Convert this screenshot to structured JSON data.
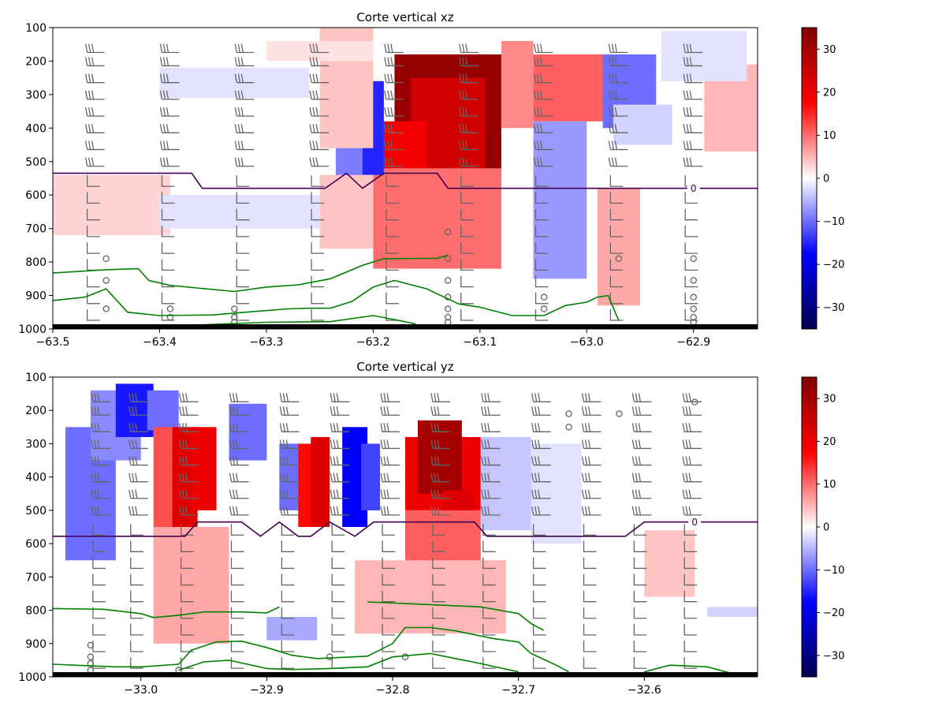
{
  "chart_data": [
    {
      "type": "heatmap",
      "title": "Corte vertical xz",
      "xlabel": "",
      "ylabel": "",
      "xlim": [
        -63.5,
        -62.84
      ],
      "ylim": [
        1000,
        100
      ],
      "y_inverted": true,
      "xticks": [
        -63.5,
        -63.4,
        -63.3,
        -63.2,
        -63.1,
        -63.0,
        -62.9
      ],
      "xtick_labels": [
        "−63.5",
        "−63.4",
        "−63.3",
        "−63.2",
        "−63.1",
        "−63.0",
        "−62.9"
      ],
      "yticks": [
        100,
        200,
        300,
        400,
        500,
        600,
        700,
        800,
        900,
        1000
      ],
      "ytick_labels": [
        "100",
        "200",
        "300",
        "400",
        "500",
        "600",
        "700",
        "800",
        "900",
        "1000"
      ],
      "colormap": "seismic",
      "clim": [
        -35,
        35
      ],
      "colorbar_ticks": [
        30,
        20,
        10,
        0,
        -10,
        -20,
        -30
      ],
      "colorbar_tick_labels": [
        "30",
        "20",
        "10",
        "0",
        "−10",
        "−20",
        "−30"
      ],
      "cells": [
        {
          "x": [
            -63.18,
            -63.08
          ],
          "y": [
            180,
            560
          ],
          "value": 32
        },
        {
          "x": [
            -63.165,
            -63.095
          ],
          "y": [
            250,
            520
          ],
          "value": 24
        },
        {
          "x": [
            -63.19,
            -63.15
          ],
          "y": [
            380,
            640
          ],
          "value": 19
        },
        {
          "x": [
            -63.2,
            -63.08
          ],
          "y": [
            520,
            820
          ],
          "value": 10
        },
        {
          "x": [
            -63.08,
            -63.05
          ],
          "y": [
            140,
            400
          ],
          "value": 8
        },
        {
          "x": [
            -63.03,
            -63.0
          ],
          "y": [
            190,
            320
          ],
          "value": 24
        },
        {
          "x": [
            -63.05,
            -62.98
          ],
          "y": [
            180,
            380
          ],
          "value": 11
        },
        {
          "x": [
            -63.22,
            -63.19
          ],
          "y": [
            260,
            540
          ],
          "value": -15
        },
        {
          "x": [
            -63.235,
            -63.21
          ],
          "y": [
            420,
            550
          ],
          "value": -9
        },
        {
          "x": [
            -63.05,
            -63.0
          ],
          "y": [
            380,
            850
          ],
          "value": -7
        },
        {
          "x": [
            -62.985,
            -62.935
          ],
          "y": [
            180,
            400
          ],
          "value": -10
        },
        {
          "x": [
            -62.975,
            -62.92
          ],
          "y": [
            330,
            450
          ],
          "value": -3
        },
        {
          "x": [
            -62.89,
            -62.84
          ],
          "y": [
            210,
            470
          ],
          "value": 5
        },
        {
          "x": [
            -63.25,
            -63.2
          ],
          "y": [
            100,
            460
          ],
          "value": 4
        },
        {
          "x": [
            -63.25,
            -63.2
          ],
          "y": [
            540,
            760
          ],
          "value": 4
        },
        {
          "x": [
            -62.99,
            -62.95
          ],
          "y": [
            580,
            930
          ],
          "value": 6
        },
        {
          "x": [
            -63.5,
            -63.39
          ],
          "y": [
            540,
            720
          ],
          "value": 3
        },
        {
          "x": [
            -63.3,
            -63.2
          ],
          "y": [
            140,
            200
          ],
          "value": 2
        },
        {
          "x": [
            -63.4,
            -63.26
          ],
          "y": [
            220,
            310
          ],
          "value": -2
        },
        {
          "x": [
            -63.4,
            -63.25
          ],
          "y": [
            600,
            700
          ],
          "value": -2
        },
        {
          "x": [
            -62.93,
            -62.85
          ],
          "y": [
            110,
            260
          ],
          "value": -2
        }
      ],
      "contours": [
        {
          "name": "0",
          "color": "#440154",
          "label_x": -62.9,
          "x": [
            -63.5,
            -63.37,
            -63.36,
            -63.245,
            -63.225,
            -63.21,
            -63.19,
            -63.14,
            -63.13,
            -62.84
          ],
          "y": [
            535,
            535,
            580,
            580,
            535,
            580,
            535,
            535,
            580,
            580
          ]
        },
        {
          "name": "green-1",
          "color": "#008000",
          "x": [
            -63.5,
            -63.45,
            -63.42,
            -63.41,
            -63.39,
            -63.33,
            -63.3,
            -63.27,
            -63.24,
            -63.21,
            -63.19,
            -63.14,
            -63.13
          ],
          "y": [
            833,
            823,
            820,
            855,
            870,
            888,
            875,
            868,
            850,
            810,
            790,
            789,
            780
          ]
        },
        {
          "name": "green-2",
          "color": "#008000",
          "x": [
            -63.5,
            -63.47,
            -63.45,
            -63.43,
            -63.4,
            -63.35,
            -63.32,
            -63.28,
            -63.26,
            -63.24,
            -63.22,
            -63.2,
            -63.18,
            -63.15,
            -63.12,
            -63.1,
            -63.07,
            -63.04,
            -63.02,
            -63.0,
            -62.99,
            -62.98,
            -62.97
          ],
          "y": [
            915,
            905,
            880,
            950,
            960,
            958,
            950,
            940,
            938,
            938,
            918,
            875,
            855,
            880,
            925,
            935,
            960,
            960,
            930,
            920,
            905,
            900,
            975
          ]
        },
        {
          "name": "green-3",
          "color": "#008000",
          "x": [
            -63.38,
            -63.3,
            -63.24,
            -63.2,
            -63.18,
            -63.16
          ],
          "y": [
            990,
            980,
            978,
            960,
            972,
            985
          ]
        }
      ],
      "open_circles": [
        {
          "x": -63.45,
          "y": [
            790,
            855,
            940
          ]
        },
        {
          "x": -63.39,
          "y": [
            940,
            965
          ]
        },
        {
          "x": -63.33,
          "y": [
            940,
            965,
            980
          ]
        },
        {
          "x": -63.13,
          "y": [
            710,
            790,
            855,
            905,
            940,
            965,
            980
          ]
        },
        {
          "x": -63.04,
          "y": [
            905,
            940
          ]
        },
        {
          "x": -62.97,
          "y": [
            790
          ]
        },
        {
          "x": -62.9,
          "y": [
            790,
            855,
            905,
            940,
            965,
            980
          ]
        }
      ],
      "barb_columns": [
        -63.47,
        -63.4,
        -63.33,
        -63.26,
        -63.19,
        -63.12,
        -63.05,
        -62.98,
        -62.91
      ],
      "barb_levels": [
        160,
        200,
        250,
        300,
        350,
        400,
        450,
        500,
        560,
        610,
        660,
        710,
        760,
        810,
        860,
        910,
        960
      ]
    },
    {
      "type": "heatmap",
      "title": "Corte vertical yz",
      "xlabel": "",
      "ylabel": "",
      "xlim": [
        -33.07,
        -32.51
      ],
      "ylim": [
        1000,
        100
      ],
      "y_inverted": true,
      "xticks": [
        -33.0,
        -32.9,
        -32.8,
        -32.7,
        -32.6
      ],
      "xtick_labels": [
        "−33.0",
        "−32.9",
        "−32.8",
        "−32.7",
        "−32.6"
      ],
      "yticks": [
        100,
        200,
        300,
        400,
        500,
        600,
        700,
        800,
        900,
        1000
      ],
      "ytick_labels": [
        "100",
        "200",
        "300",
        "400",
        "500",
        "600",
        "700",
        "800",
        "900",
        "1000"
      ],
      "colormap": "seismic",
      "clim": [
        -35,
        35
      ],
      "colorbar_ticks": [
        30,
        20,
        10,
        0,
        -10,
        -20,
        -30
      ],
      "colorbar_tick_labels": [
        "30",
        "20",
        "10",
        "0",
        "−10",
        "−20",
        "−30"
      ],
      "cells": [
        {
          "x": [
            -33.06,
            -33.02
          ],
          "y": [
            250,
            650
          ],
          "value": -10
        },
        {
          "x": [
            -33.04,
            -33.0
          ],
          "y": [
            140,
            350
          ],
          "value": -8
        },
        {
          "x": [
            -33.02,
            -32.99
          ],
          "y": [
            120,
            280
          ],
          "value": -16
        },
        {
          "x": [
            -32.995,
            -32.97
          ],
          "y": [
            140,
            260
          ],
          "value": -10
        },
        {
          "x": [
            -32.99,
            -32.97
          ],
          "y": [
            250,
            650
          ],
          "value": 12
        },
        {
          "x": [
            -32.975,
            -32.955
          ],
          "y": [
            250,
            650
          ],
          "value": 22
        },
        {
          "x": [
            -32.96,
            -32.94
          ],
          "y": [
            250,
            500
          ],
          "value": 20
        },
        {
          "x": [
            -32.99,
            -32.93
          ],
          "y": [
            550,
            900
          ],
          "value": 6
        },
        {
          "x": [
            -32.93,
            -32.9
          ],
          "y": [
            180,
            350
          ],
          "value": -10
        },
        {
          "x": [
            -32.89,
            -32.87
          ],
          "y": [
            300,
            500
          ],
          "value": -10
        },
        {
          "x": [
            -32.875,
            -32.86
          ],
          "y": [
            300,
            550
          ],
          "value": 17
        },
        {
          "x": [
            -32.865,
            -32.85
          ],
          "y": [
            280,
            550
          ],
          "value": 22
        },
        {
          "x": [
            -32.84,
            -32.82
          ],
          "y": [
            250,
            550
          ],
          "value": -18
        },
        {
          "x": [
            -32.825,
            -32.81
          ],
          "y": [
            300,
            500
          ],
          "value": -13
        },
        {
          "x": [
            -32.79,
            -32.73
          ],
          "y": [
            280,
            500
          ],
          "value": 20
        },
        {
          "x": [
            -32.78,
            -32.745
          ],
          "y": [
            230,
            450
          ],
          "value": 30
        },
        {
          "x": [
            -32.76,
            -32.735
          ],
          "y": [
            440,
            760
          ],
          "value": 22
        },
        {
          "x": [
            -32.79,
            -32.73
          ],
          "y": [
            500,
            830
          ],
          "value": 11
        },
        {
          "x": [
            -32.83,
            -32.71
          ],
          "y": [
            650,
            870
          ],
          "value": 5
        },
        {
          "x": [
            -32.9,
            -32.86
          ],
          "y": [
            820,
            890
          ],
          "value": -6
        },
        {
          "x": [
            -32.73,
            -32.69
          ],
          "y": [
            280,
            560
          ],
          "value": -4
        },
        {
          "x": [
            -32.69,
            -32.65
          ],
          "y": [
            300,
            600
          ],
          "value": -2
        },
        {
          "x": [
            -32.6,
            -32.56
          ],
          "y": [
            560,
            760
          ],
          "value": 4
        },
        {
          "x": [
            -32.55,
            -32.51
          ],
          "y": [
            790,
            820
          ],
          "value": -3
        }
      ],
      "contours": [
        {
          "name": "0",
          "color": "#440154",
          "label_x": -32.56,
          "x": [
            -33.07,
            -32.965,
            -32.955,
            -32.92,
            -32.905,
            -32.89,
            -32.875,
            -32.865,
            -32.85,
            -32.83,
            -32.815,
            -32.8,
            -32.735,
            -32.725,
            -32.615,
            -32.6,
            -32.51
          ],
          "y": [
            578,
            578,
            535,
            535,
            578,
            535,
            578,
            578,
            535,
            578,
            535,
            535,
            535,
            578,
            578,
            535,
            535
          ]
        },
        {
          "name": "green-1",
          "color": "#008000",
          "x": [
            -33.07,
            -33.03,
            -33.0,
            -32.99,
            -32.97,
            -32.95,
            -32.92,
            -32.9,
            -32.89
          ],
          "y": [
            795,
            797,
            810,
            822,
            815,
            805,
            805,
            808,
            790
          ]
        },
        {
          "name": "green-2",
          "color": "#008000",
          "x": [
            -32.82,
            -32.79,
            -32.76,
            -32.73,
            -32.7,
            -32.69,
            -32.68
          ],
          "y": [
            775,
            780,
            785,
            790,
            810,
            840,
            860
          ]
        },
        {
          "name": "green-3",
          "color": "#008000",
          "x": [
            -33.07,
            -33.02,
            -33.0,
            -32.97,
            -32.96,
            -32.94,
            -32.92,
            -32.9,
            -32.88,
            -32.86,
            -32.82,
            -32.8,
            -32.79,
            -32.77,
            -32.75,
            -32.72,
            -32.7,
            -32.69,
            -32.67,
            -32.66
          ],
          "y": [
            962,
            970,
            970,
            962,
            920,
            895,
            893,
            912,
            935,
            945,
            938,
            900,
            852,
            852,
            862,
            885,
            895,
            930,
            965,
            985
          ]
        },
        {
          "name": "green-4",
          "color": "#008000",
          "x": [
            -32.97,
            -32.95,
            -32.93,
            -32.9,
            -32.88,
            -32.85,
            -32.82,
            -32.8,
            -32.77,
            -32.75,
            -32.73,
            -32.7
          ],
          "y": [
            980,
            955,
            950,
            975,
            978,
            975,
            970,
            940,
            930,
            945,
            960,
            985
          ]
        },
        {
          "name": "green-5",
          "color": "#008000",
          "x": [
            -32.6,
            -32.58,
            -32.55,
            -32.53
          ],
          "y": [
            985,
            965,
            970,
            990
          ]
        }
      ],
      "open_circles": [
        {
          "x": -33.04,
          "y": [
            905,
            940,
            960,
            980
          ]
        },
        {
          "x": -32.97,
          "y": [
            980
          ]
        },
        {
          "x": -32.85,
          "y": [
            940
          ]
        },
        {
          "x": -32.79,
          "y": [
            940
          ]
        },
        {
          "x": -32.66,
          "y": [
            210,
            250
          ]
        },
        {
          "x": -32.62,
          "y": [
            210
          ]
        },
        {
          "x": -32.56,
          "y": [
            175
          ]
        }
      ],
      "barb_columns": [
        -33.04,
        -33.01,
        -32.97,
        -32.93,
        -32.89,
        -32.85,
        -32.81,
        -32.77,
        -32.73,
        -32.69,
        -32.65,
        -32.61,
        -32.57
      ],
      "barb_levels": [
        160,
        200,
        250,
        300,
        350,
        400,
        450,
        500,
        560,
        610,
        660,
        710,
        760,
        810,
        860,
        910,
        960
      ]
    }
  ]
}
